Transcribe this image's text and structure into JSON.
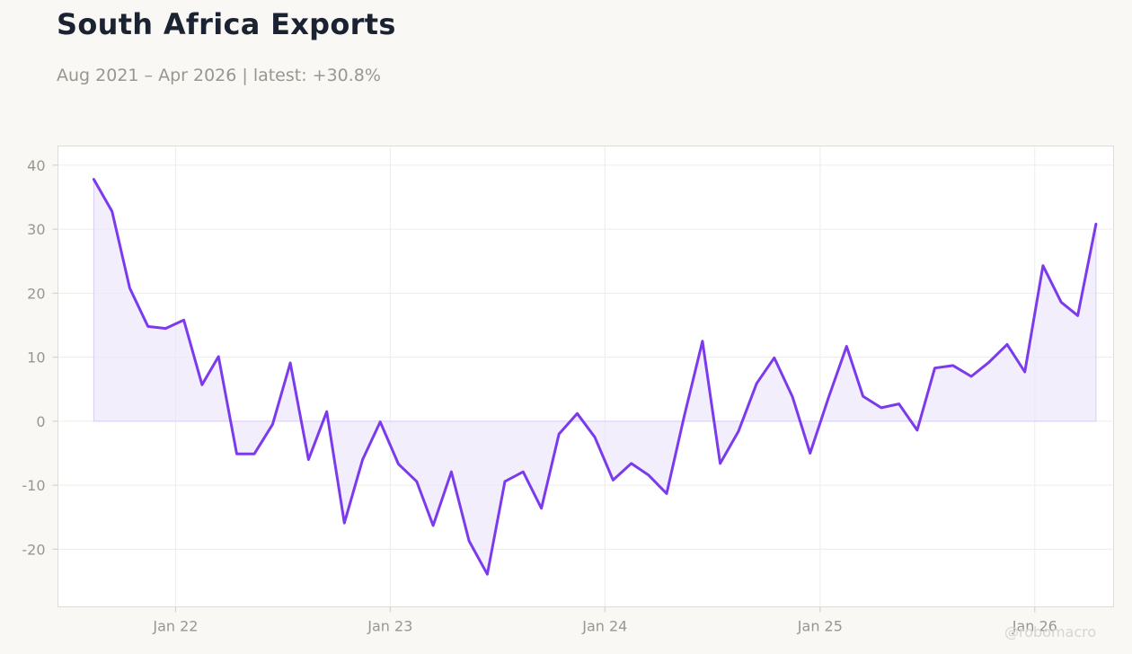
{
  "header": {
    "title": "South Africa Exports",
    "subtitle": "Aug 2021 – Apr 2026 | latest: +30.8%"
  },
  "watermark": "@robomacro",
  "colors": {
    "line": "#7c3aed",
    "fill": "#ede7fb",
    "background": "#f9f8f5",
    "plot_background": "#ffffff",
    "text_muted": "#9a968f",
    "title": "#1b2333"
  },
  "chart_data": {
    "type": "area",
    "title": "South Africa Exports",
    "subtitle": "Aug 2021 – Apr 2026 | latest: +30.8%",
    "xlabel": "",
    "ylabel": "",
    "ylim": [
      -29,
      43
    ],
    "xlim": [
      "2021-06-15",
      "2026-05-15"
    ],
    "grid": true,
    "legend": "none",
    "x_ticks": [
      {
        "date": "2022-01-01",
        "label": "Jan 22"
      },
      {
        "date": "2023-01-01",
        "label": "Jan 23"
      },
      {
        "date": "2024-01-01",
        "label": "Jan 24"
      },
      {
        "date": "2025-01-01",
        "label": "Jan 25"
      },
      {
        "date": "2026-01-01",
        "label": "Jan 26"
      }
    ],
    "y_ticks": [
      40,
      30,
      20,
      10,
      0,
      -10,
      -20
    ],
    "series": [
      {
        "x": [
          "2021-08",
          "2021-09",
          "2021-10",
          "2021-11",
          "2021-12",
          "2022-01",
          "2022-02",
          "2022-03",
          "2022-04",
          "2022-05",
          "2022-06",
          "2022-07",
          "2022-08",
          "2022-09",
          "2022-10",
          "2022-11",
          "2022-12",
          "2023-01",
          "2023-02",
          "2023-03",
          "2023-04",
          "2023-05",
          "2023-06",
          "2023-07",
          "2023-08",
          "2023-09",
          "2023-10",
          "2023-11",
          "2023-12",
          "2024-01",
          "2024-02",
          "2024-03",
          "2024-04",
          "2024-05",
          "2024-06",
          "2024-07",
          "2024-08",
          "2024-09",
          "2024-10",
          "2024-11",
          "2024-12",
          "2025-01",
          "2025-02",
          "2025-03",
          "2025-04",
          "2025-05",
          "2025-06",
          "2025-07",
          "2025-08",
          "2025-09",
          "2025-10",
          "2025-11",
          "2025-12",
          "2026-01",
          "2026-02",
          "2026-03",
          "2026-04"
        ],
        "values": [
          37.8,
          32.8,
          20.8,
          14.8,
          14.5,
          15.8,
          5.7,
          10.1,
          -5.1,
          -5.1,
          -0.5,
          9.1,
          -6.0,
          1.5,
          -15.9,
          -6.0,
          -0.1,
          -6.7,
          -9.4,
          -16.3,
          -7.9,
          -18.7,
          -23.9,
          -9.4,
          -7.9,
          -13.6,
          -2.0,
          1.2,
          -2.5,
          -9.2,
          -6.6,
          -8.4,
          -11.3,
          0.8,
          12.5,
          -6.6,
          -1.6,
          5.9,
          9.9,
          3.8,
          -5.0,
          3.6,
          11.7,
          3.9,
          2.1,
          2.7,
          -1.4,
          8.3,
          8.7,
          7.0,
          9.2,
          12.0,
          7.7,
          24.3,
          18.6,
          16.5,
          30.8
        ]
      }
    ]
  }
}
